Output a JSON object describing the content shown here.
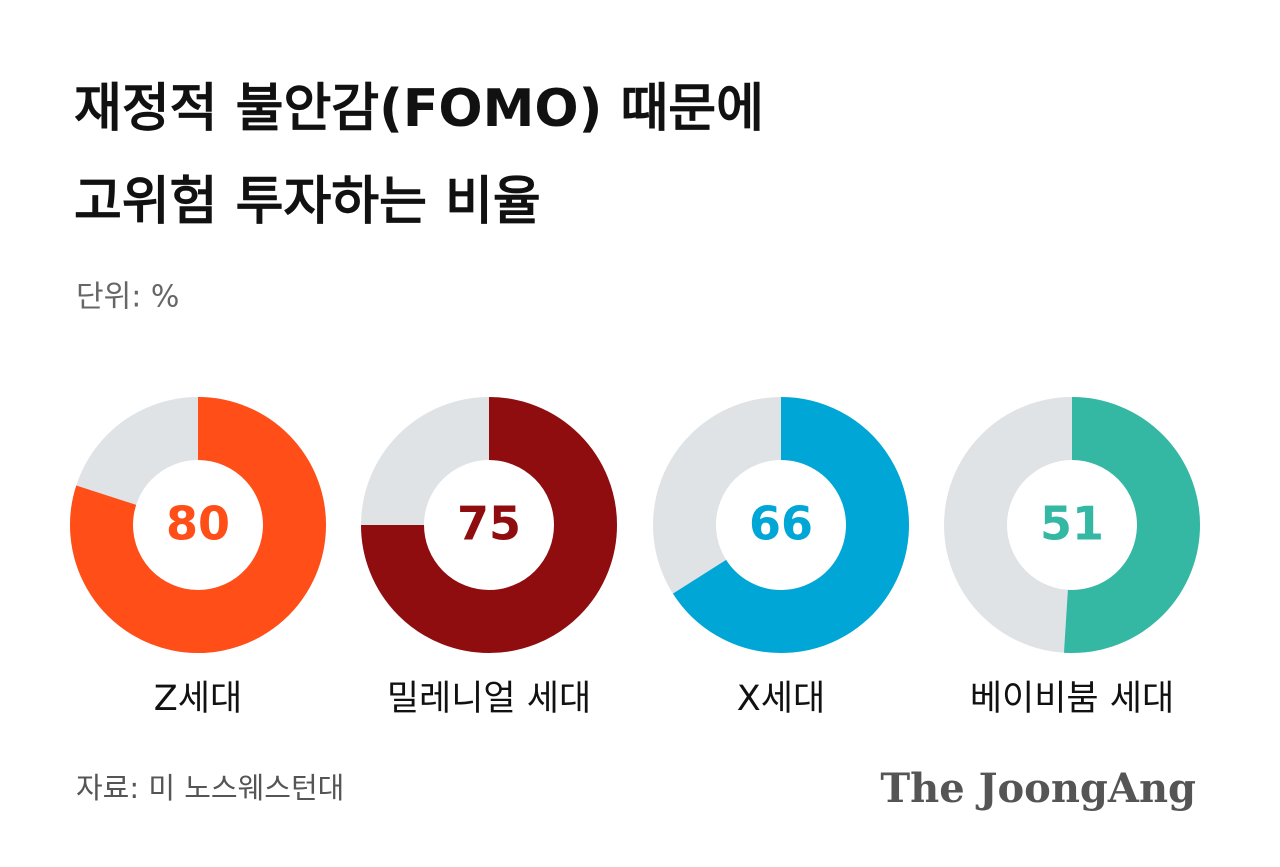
{
  "chart_data": {
    "type": "donut",
    "title": [
      "재정적 불안감(FOMO) 때문에",
      "고위험 투자하는 비율"
    ],
    "unit": "단위: %",
    "categories": [
      "Z세대",
      "밀레니얼 세대",
      "X세대",
      "베이비붐 세대"
    ],
    "values": [
      80,
      75,
      66,
      51
    ],
    "colors": [
      "#ff4e18",
      "#8f0c0f",
      "#00a6d6",
      "#34b8a4"
    ],
    "rest_color": "#dfe3e6",
    "total": 100,
    "source": "자료: 미 노스웨스턴대"
  },
  "brand": "The JoongAng"
}
